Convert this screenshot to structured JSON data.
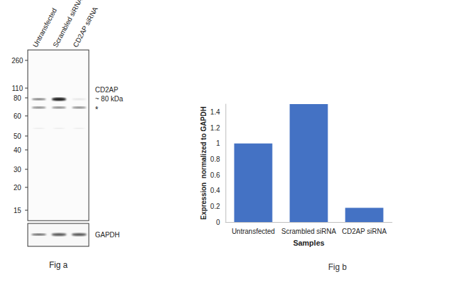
{
  "chart_data": {
    "type": "bar",
    "title": "Fig b",
    "x_label": "Samples",
    "y_label": "Expression  normalized to GAPDH",
    "categories": [
      "Untransfected",
      "Scrambled siRNA",
      "CD2AP siRNA"
    ],
    "values": [
      1.0,
      1.5,
      0.18
    ],
    "color": "#4472c4",
    "ylim": [
      0,
      1.5
    ],
    "yticks": [
      0,
      0.2,
      0.4,
      0.6,
      0.8,
      1,
      1.2,
      1.4
    ],
    "grid": false
  },
  "blot": {
    "lanes": [
      "Untransfected",
      "Scrambled siRNA",
      "CD2AP siRNA"
    ],
    "markers": [
      260,
      110,
      80,
      60,
      50,
      40,
      30,
      20,
      15
    ],
    "target": "CD2AP",
    "target_size": "~ 80 kDa",
    "asterisk": "*",
    "loading_control": "GAPDH",
    "caption": "Fig a"
  }
}
